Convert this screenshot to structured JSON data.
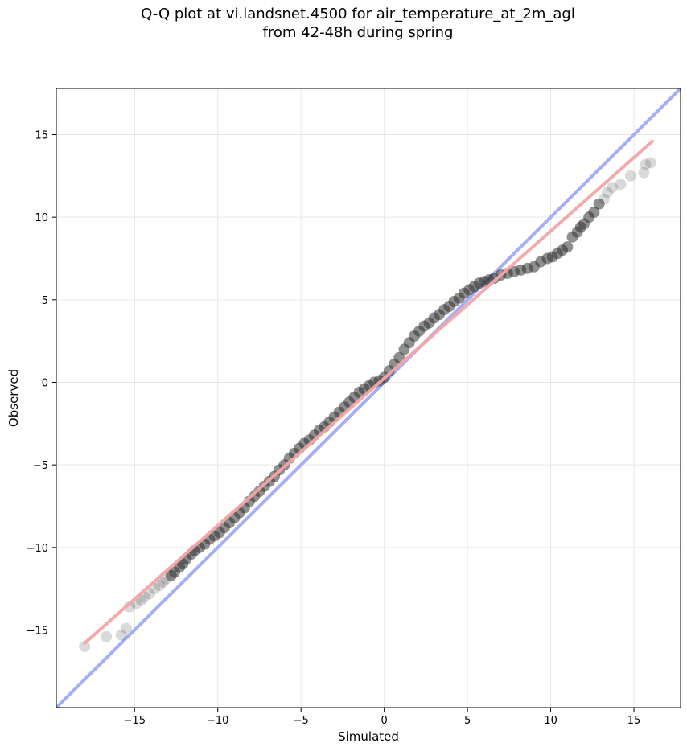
{
  "title": {
    "line1": "Q-Q plot at vi.landsnet.4500 for air_temperature_at_2m_agl",
    "line2": "from 42-48h during spring"
  },
  "chart_data": {
    "type": "scatter",
    "title": "Q-Q plot at vi.landsnet.4500 for air_temperature_at_2m_agl\nfrom 42-48h during spring",
    "xlabel": "Simulated",
    "ylabel": "Observed",
    "xlim": [
      -19.7,
      17.8
    ],
    "ylim": [
      -19.7,
      17.8
    ],
    "xticks": [
      -15,
      -10,
      -5,
      0,
      5,
      10,
      15
    ],
    "yticks": [
      -15,
      -10,
      -5,
      0,
      5,
      10,
      15
    ],
    "xtick_labels": [
      "−15",
      "−10",
      "−5",
      "0",
      "5",
      "10",
      "15"
    ],
    "ytick_labels": [
      "−15",
      "−10",
      "−5",
      "0",
      "5",
      "10",
      "15"
    ],
    "grid": true,
    "colors": {
      "points": "#333333",
      "identity_line": "#a6aef5",
      "fit_line": "#f3a5a5"
    },
    "series": [
      {
        "role": "quantile points",
        "x": [
          -18.0,
          -16.7,
          -15.8,
          -15.5,
          -15.3,
          -14.9,
          -14.6,
          -14.4,
          -14.1,
          -13.8,
          -13.5,
          -13.3,
          -13.1,
          -12.8,
          -12.6,
          -12.3,
          -12.1,
          -11.9,
          -11.6,
          -11.4,
          -11.1,
          -10.8,
          -10.5,
          -10.2,
          -9.9,
          -9.6,
          -9.3,
          -9.0,
          -8.7,
          -8.4,
          -8.1,
          -7.8,
          -7.5,
          -7.2,
          -6.9,
          -6.6,
          -6.3,
          -6.0,
          -5.7,
          -5.4,
          -5.1,
          -4.8,
          -4.5,
          -4.2,
          -3.9,
          -3.6,
          -3.3,
          -3.0,
          -2.7,
          -2.4,
          -2.1,
          -1.8,
          -1.5,
          -1.2,
          -0.9,
          -0.6,
          -0.3,
          0.0,
          0.3,
          0.6,
          0.9,
          1.2,
          1.5,
          1.8,
          2.1,
          2.4,
          2.7,
          3.0,
          3.3,
          3.6,
          3.9,
          4.2,
          4.5,
          4.8,
          5.1,
          5.4,
          5.7,
          6.0,
          6.3,
          6.6,
          7.0,
          7.4,
          7.8,
          8.2,
          8.6,
          9.0,
          9.4,
          9.8,
          10.1,
          10.4,
          10.7,
          11.0,
          11.3,
          11.6,
          11.8,
          12.0,
          12.3,
          12.6,
          12.9,
          13.2,
          13.4,
          13.7,
          14.2,
          14.8,
          15.6,
          15.7,
          16.0
        ],
        "y": [
          -16.0,
          -15.4,
          -15.3,
          -14.9,
          -13.6,
          -13.4,
          -13.2,
          -13.0,
          -12.8,
          -12.5,
          -12.3,
          -12.1,
          -11.9,
          -11.7,
          -11.5,
          -11.2,
          -11.0,
          -10.7,
          -10.4,
          -10.2,
          -10.0,
          -9.8,
          -9.5,
          -9.3,
          -9.1,
          -8.8,
          -8.5,
          -8.2,
          -7.9,
          -7.6,
          -7.2,
          -6.9,
          -6.6,
          -6.3,
          -6.0,
          -5.7,
          -5.3,
          -5.0,
          -4.6,
          -4.3,
          -4.0,
          -3.7,
          -3.5,
          -3.2,
          -2.9,
          -2.7,
          -2.4,
          -2.1,
          -1.8,
          -1.5,
          -1.2,
          -0.9,
          -0.6,
          -0.4,
          -0.2,
          0.0,
          0.1,
          0.3,
          0.7,
          1.1,
          1.5,
          2.0,
          2.4,
          2.8,
          3.1,
          3.4,
          3.6,
          3.9,
          4.1,
          4.4,
          4.6,
          4.9,
          5.1,
          5.4,
          5.6,
          5.8,
          6.0,
          6.1,
          6.2,
          6.3,
          6.5,
          6.6,
          6.7,
          6.8,
          6.9,
          7.0,
          7.3,
          7.5,
          7.6,
          7.8,
          8.0,
          8.2,
          8.8,
          9.1,
          9.4,
          9.6,
          10.0,
          10.3,
          10.8,
          11.1,
          11.5,
          11.8,
          12.0,
          12.5,
          12.7,
          13.2,
          13.3
        ]
      },
      {
        "role": "identity line",
        "x": [
          -19.7,
          17.8
        ],
        "y": [
          -19.7,
          17.8
        ]
      },
      {
        "role": "fit line",
        "x": [
          -18.0,
          16.1
        ],
        "y": [
          -15.8,
          14.6
        ]
      }
    ]
  }
}
